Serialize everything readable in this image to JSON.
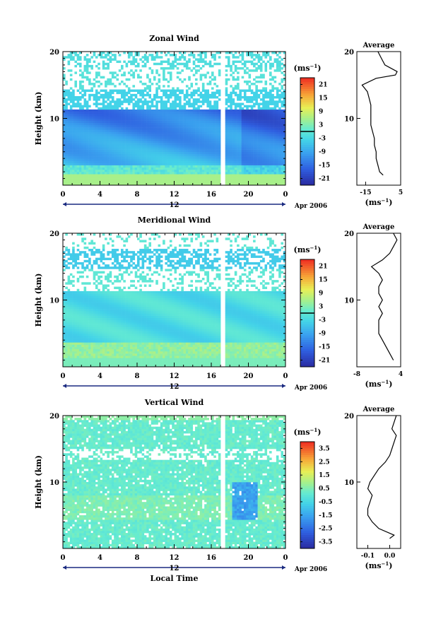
{
  "chart_data": [
    {
      "type": "heatmap",
      "title": "Zonal Wind",
      "ylabel": "Height (km)",
      "ylim": [
        0,
        20
      ],
      "xlim": [
        0,
        24
      ],
      "x_ticks": [
        "0",
        "4",
        "8",
        "12",
        "16",
        "20",
        "0"
      ],
      "date_marker": "12",
      "date_label": "Apr 2006",
      "y_ticks": [
        "10",
        "20"
      ],
      "colorbar": {
        "unit": "(ms",
        "unit_exp": "−1",
        "unit_close": ")",
        "ticks": [
          "21",
          "15",
          "9",
          "3",
          "-3",
          "-9",
          "-15",
          "-21"
        ],
        "range": [
          -24,
          24
        ],
        "zero_line": true
      },
      "average_profile": {
        "title": "Average",
        "xlabel": "(ms",
        "xlabel_exp": "−1",
        "xlabel_close": ")",
        "x_ticks": [
          "-15",
          "5"
        ],
        "xlim": [
          -20,
          5
        ],
        "y_ticks": [
          "10",
          "20"
        ],
        "heights": [
          1.5,
          2,
          3,
          4,
          5,
          6,
          7,
          8,
          9,
          10,
          11,
          12,
          13,
          14,
          15,
          16,
          16.5,
          17,
          18,
          19,
          20
        ],
        "values": [
          -5,
          -7,
          -8,
          -9,
          -9,
          -10,
          -10,
          -11,
          -12,
          -12,
          -12,
          -12,
          -13,
          -14,
          -17,
          -9,
          2,
          3,
          -4,
          -6,
          -8
        ]
      }
    },
    {
      "type": "heatmap",
      "title": "Meridional Wind",
      "ylabel": "Height (km)",
      "ylim": [
        0,
        20
      ],
      "xlim": [
        0,
        24
      ],
      "x_ticks": [
        "0",
        "4",
        "8",
        "12",
        "16",
        "20",
        "0"
      ],
      "date_marker": "12",
      "date_label": "Apr 2006",
      "y_ticks": [
        "10",
        "20"
      ],
      "colorbar": {
        "unit": "(ms",
        "unit_exp": "−1",
        "unit_close": ")",
        "ticks": [
          "21",
          "15",
          "9",
          "3",
          "-3",
          "-9",
          "-15",
          "-21"
        ],
        "range": [
          -24,
          24
        ],
        "zero_line": true
      },
      "average_profile": {
        "title": "Average",
        "xlabel": "(ms",
        "xlabel_exp": "−1",
        "xlabel_close": ")",
        "x_ticks": [
          "-8",
          "4"
        ],
        "xlim": [
          -8,
          4
        ],
        "y_ticks": [
          "10",
          "20"
        ],
        "heights": [
          1,
          2,
          3,
          4,
          5,
          6,
          7,
          8,
          9,
          10,
          11,
          12,
          13,
          14,
          15,
          16,
          17,
          18,
          19,
          20
        ],
        "values": [
          2,
          1,
          0,
          -1,
          -2,
          -2,
          -2,
          -1,
          -2,
          -1,
          -2,
          -2,
          -1,
          -2,
          -4,
          -1,
          1,
          2,
          3,
          2
        ]
      }
    },
    {
      "type": "heatmap",
      "title": "Vertical Wind",
      "ylabel": "Height (km)",
      "xlabel": "Local Time",
      "ylim": [
        0,
        20
      ],
      "xlim": [
        0,
        24
      ],
      "x_ticks": [
        "0",
        "4",
        "8",
        "12",
        "16",
        "20",
        "0"
      ],
      "date_marker": "12",
      "date_label": "Apr 2006",
      "y_ticks": [
        "10",
        "20"
      ],
      "colorbar": {
        "unit": "(ms",
        "unit_exp": "−1",
        "unit_close": ")",
        "ticks": [
          "3.5",
          "2.5",
          "1.5",
          "0.5",
          "-0.5",
          "-1.5",
          "-2.5",
          "-3.5"
        ],
        "range": [
          -4,
          4
        ],
        "zero_line": false
      },
      "average_profile": {
        "title": "Average",
        "xlabel": "(ms",
        "xlabel_exp": "−1",
        "xlabel_close": ")",
        "x_ticks": [
          "-0.1",
          "0.0"
        ],
        "xlim": [
          -0.15,
          0.05
        ],
        "y_ticks": [
          "10",
          "20"
        ],
        "heights": [
          1.5,
          2,
          3,
          4,
          5,
          6,
          7,
          8,
          9,
          10,
          11,
          12,
          13,
          14,
          15,
          16,
          17,
          18,
          19,
          20
        ],
        "values": [
          0.0,
          0.02,
          -0.05,
          -0.08,
          -0.1,
          -0.1,
          -0.09,
          -0.08,
          -0.1,
          -0.09,
          -0.07,
          -0.05,
          -0.02,
          0.0,
          0.01,
          0.02,
          0.03,
          0.01,
          0.02,
          0.03
        ]
      }
    }
  ]
}
